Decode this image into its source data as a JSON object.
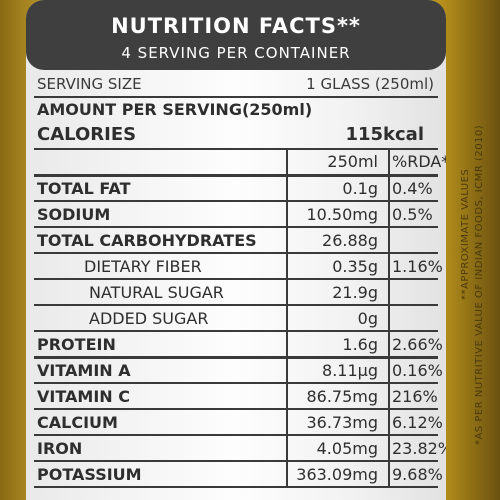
{
  "header": {
    "title": "NUTRITION FACTS**",
    "servings": "4 SERVING PER CONTAINER"
  },
  "serving": {
    "label": "SERVING SIZE",
    "value": "1 GLASS (250ml)"
  },
  "amount_label": "AMOUNT PER SERVING(250ml)",
  "calories": {
    "label": "CALORIES",
    "value": "115kcal"
  },
  "columns": {
    "amount": "250ml",
    "rda": "%RDA*"
  },
  "rows": [
    {
      "name": "TOTAL FAT",
      "amount": "0.1g",
      "rda": "0.4%",
      "bold": true
    },
    {
      "name": "SODIUM",
      "amount": "10.50mg",
      "rda": "0.5%",
      "bold": true
    },
    {
      "name": "TOTAL CARBOHYDRATES",
      "amount": "26.88g",
      "rda": "",
      "bold": true
    },
    {
      "name": "DIETARY FIBER",
      "amount": "0.35g",
      "rda": "1.16%",
      "bold": false
    },
    {
      "name": "NATURAL SUGAR",
      "amount": "21.9g",
      "rda": "",
      "bold": false
    },
    {
      "name": "ADDED SUGAR",
      "amount": "0g",
      "rda": "",
      "bold": false
    },
    {
      "name": "PROTEIN",
      "amount": "1.6g",
      "rda": "2.66%",
      "bold": true
    },
    {
      "name": "VITAMIN A",
      "amount": "8.11μg",
      "rda": "0.16%",
      "bold": true
    },
    {
      "name": "VITAMIN C",
      "amount": "86.75mg",
      "rda": "216%",
      "bold": true
    },
    {
      "name": "CALCIUM",
      "amount": "36.73mg",
      "rda": "6.12%",
      "bold": true
    },
    {
      "name": "IRON",
      "amount": "4.05mg",
      "rda": "23.82%",
      "bold": true
    },
    {
      "name": "POTASSIUM",
      "amount": "363.09mg",
      "rda": "9.68%",
      "bold": true
    }
  ],
  "notes": {
    "approx": "**APPROXIMATE VALUES",
    "rda_source": "*AS PER NUTRITIVE VALUE OF INDIAN FOODS, ICMR (2010)"
  },
  "colors": {
    "header_bg": "#3f3f3f",
    "gold": "#d9b533",
    "text": "#2e2e2e"
  }
}
